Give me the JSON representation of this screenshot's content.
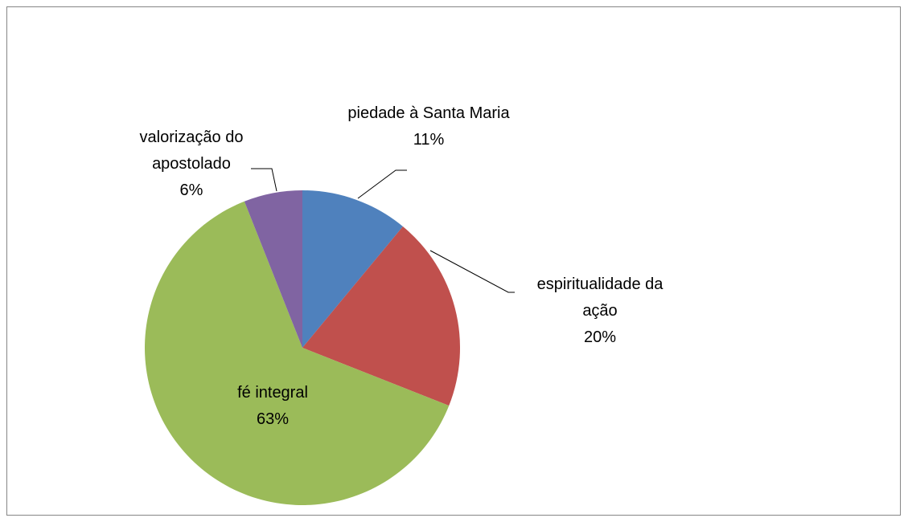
{
  "chart_data": {
    "type": "pie",
    "categories": [
      "piedade à Santa Maria",
      "espiritualidade da ação",
      "fé integral",
      "valorização do apostolado"
    ],
    "values": [
      11,
      20,
      63,
      6
    ],
    "value_labels": [
      "11%",
      "20%",
      "63%",
      "6%"
    ],
    "colors": [
      "#4f81bd",
      "#c0504d",
      "#9bbb59",
      "#8064a2"
    ]
  }
}
